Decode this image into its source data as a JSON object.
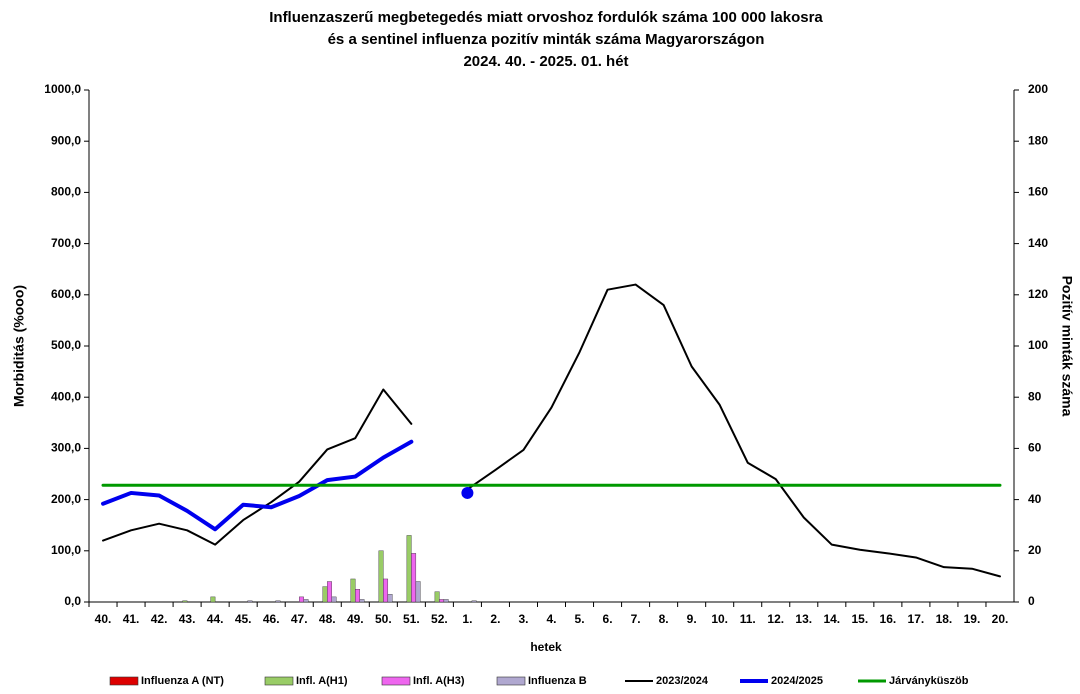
{
  "chart_data": {
    "type": "bar-line",
    "title": [
      "Influenzaszerű megbetegedés miatt orvoshoz fordulók száma 100 000 lakosra",
      "és a sentinel influenza pozitív minták száma Magyarországon",
      "2024. 40. - 2025. 01. hét"
    ],
    "y_label": "Morbiditás (%ooo)",
    "y2_label": "Pozitív minták száma",
    "x_label": "hetek",
    "categories": [
      "40.",
      "41.",
      "42.",
      "43.",
      "44.",
      "45.",
      "46.",
      "47.",
      "48.",
      "49.",
      "50.",
      "51.",
      "52.",
      "1.",
      "2.",
      "3.",
      "4.",
      "5.",
      "6.",
      "7.",
      "8.",
      "9.",
      "10.",
      "11.",
      "12.",
      "13.",
      "14.",
      "15.",
      "16.",
      "17.",
      "18.",
      "19.",
      "20."
    ],
    "ylim": [
      0,
      1000
    ],
    "yticks": [
      {
        "value": 0,
        "label": "0,0"
      },
      {
        "value": 100,
        "label": "100,0"
      },
      {
        "value": 200,
        "label": "200,0"
      },
      {
        "value": 300,
        "label": "300,0"
      },
      {
        "value": 400,
        "label": "400,0"
      },
      {
        "value": 500,
        "label": "500,0"
      },
      {
        "value": 600,
        "label": "600,0"
      },
      {
        "value": 700,
        "label": "700,0"
      },
      {
        "value": 800,
        "label": "800,0"
      },
      {
        "value": 900,
        "label": "900,0"
      },
      {
        "value": 1000,
        "label": "1000,0"
      }
    ],
    "y2lim": [
      0,
      200
    ],
    "y2ticks": [
      0,
      20,
      40,
      60,
      80,
      100,
      120,
      140,
      160,
      180,
      200
    ],
    "series": [
      {
        "name": "Influenza A (NT)",
        "kind": "bar",
        "axis": "y2",
        "color": "#dd0000",
        "values": [
          0,
          0,
          0,
          0,
          0,
          0,
          0,
          0,
          0,
          0,
          0,
          0,
          0,
          0,
          0,
          0,
          0,
          0,
          0,
          0,
          0,
          0,
          0,
          0,
          0,
          0,
          0,
          0,
          0,
          0,
          0,
          0,
          0
        ]
      },
      {
        "name": "Infl. A(H1)",
        "kind": "bar",
        "axis": "y2",
        "color": "#99cc66",
        "values": [
          0,
          0,
          0,
          0.5,
          2,
          0,
          0,
          0,
          6,
          9,
          20,
          26,
          4,
          0,
          0,
          0,
          0,
          0,
          0,
          0,
          0,
          0,
          0,
          0,
          0,
          0,
          0,
          0,
          0,
          0,
          0,
          0,
          0
        ]
      },
      {
        "name": "Infl. A(H3)",
        "kind": "bar",
        "axis": "y2",
        "color": "#ee66ee",
        "values": [
          0,
          0,
          0,
          0,
          0,
          0,
          0,
          2,
          8,
          5,
          9,
          19,
          1,
          0,
          0,
          0,
          0,
          0,
          0,
          0,
          0,
          0,
          0,
          0,
          0,
          0,
          0,
          0,
          0,
          0,
          0,
          0,
          0
        ]
      },
      {
        "name": "Influenza B",
        "kind": "bar",
        "axis": "y2",
        "color": "#b0a8d0",
        "values": [
          0,
          0,
          0,
          0,
          0,
          0.5,
          0.5,
          1,
          2,
          1,
          3,
          8,
          1,
          0.5,
          0,
          0,
          0,
          0,
          0,
          0,
          0,
          0,
          0,
          0,
          0,
          0,
          0,
          0,
          0,
          0,
          0,
          0,
          0
        ]
      },
      {
        "name": "2023/2024",
        "kind": "line",
        "color": "#000000",
        "width": 2,
        "values": [
          120,
          140,
          153,
          140,
          112,
          160,
          195,
          235,
          298,
          320,
          415,
          348,
          null,
          220,
          258,
          297,
          380,
          488,
          610,
          620,
          580,
          460,
          385,
          272,
          240,
          165,
          112,
          102,
          95,
          87,
          68,
          65,
          50
        ]
      },
      {
        "name": "2024/2025",
        "kind": "line",
        "color": "#0000ee",
        "width": 4,
        "values": [
          192,
          213,
          208,
          178,
          142,
          190,
          185,
          207,
          238,
          245,
          282,
          313,
          null,
          213,
          null,
          null,
          null,
          null,
          null,
          null,
          null,
          null,
          null,
          null,
          null,
          null,
          null,
          null,
          null,
          null,
          null,
          null,
          null
        ]
      },
      {
        "name": "Járványküszöb",
        "kind": "line",
        "color": "#009900",
        "width": 3,
        "values": [
          228,
          228,
          228,
          228,
          228,
          228,
          228,
          228,
          228,
          228,
          228,
          228,
          228,
          228,
          228,
          228,
          228,
          228,
          228,
          228,
          228,
          228,
          228,
          228,
          228,
          228,
          228,
          228,
          228,
          228,
          228,
          228,
          228
        ]
      }
    ]
  }
}
